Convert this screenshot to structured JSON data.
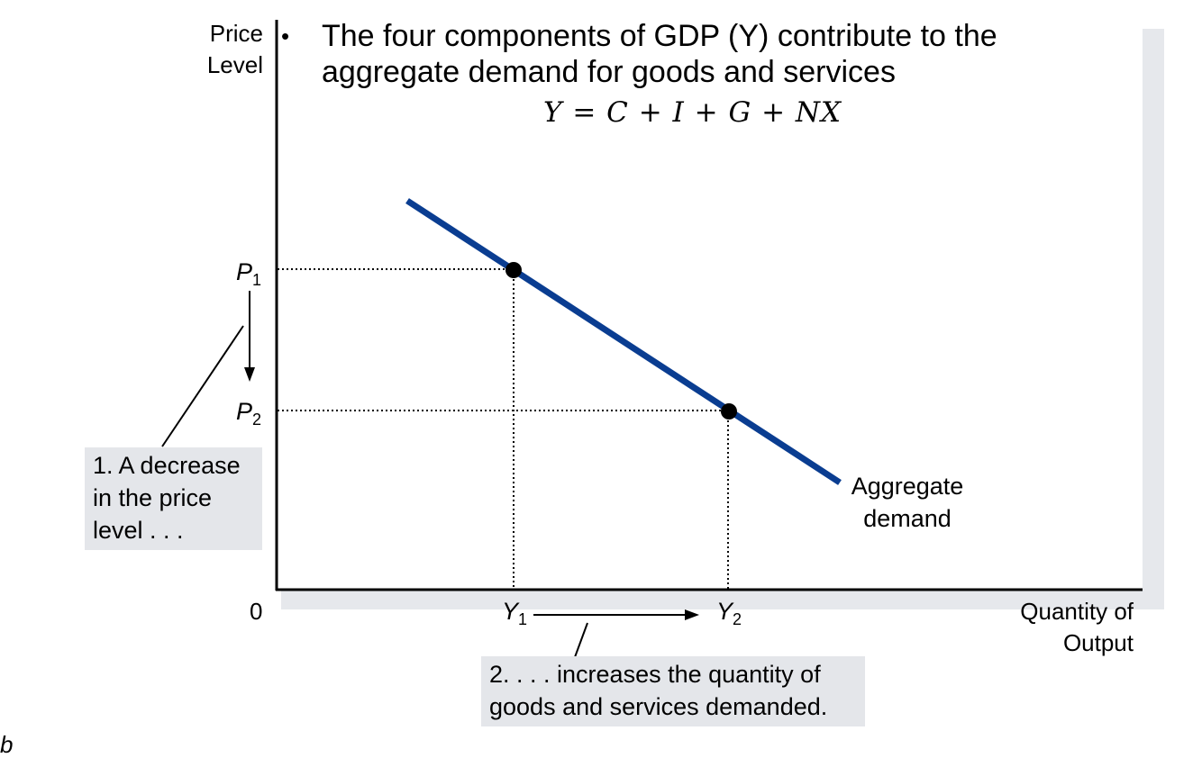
{
  "axes": {
    "y_label_line1": "Price",
    "y_label_line2": "Level",
    "x_label_line1": "Quantity of",
    "x_label_line2": "Output",
    "origin_label": "0"
  },
  "bullet": {
    "symbol": "•",
    "line1": "The four components of GDP (Y) contribute to the",
    "line2": "aggregate demand for goods and services",
    "equation": "Y = C + I + G + NX"
  },
  "points": {
    "p1": {
      "base": "P",
      "sub": "1"
    },
    "p2": {
      "base": "P",
      "sub": "2"
    },
    "y1": {
      "base": "Y",
      "sub": "1"
    },
    "y2": {
      "base": "Y",
      "sub": "2"
    }
  },
  "curve": {
    "label_line1": "Aggregate",
    "label_line2": "demand",
    "color": "#0a3d91"
  },
  "notes": {
    "note1_line1": "1. A decrease",
    "note1_line2": "in the price",
    "note1_line3": "level . . .",
    "note2_line1": "2. . . . increases the quantity of",
    "note2_line2": "goods and services demanded."
  },
  "footer": {
    "letter": "b"
  }
}
